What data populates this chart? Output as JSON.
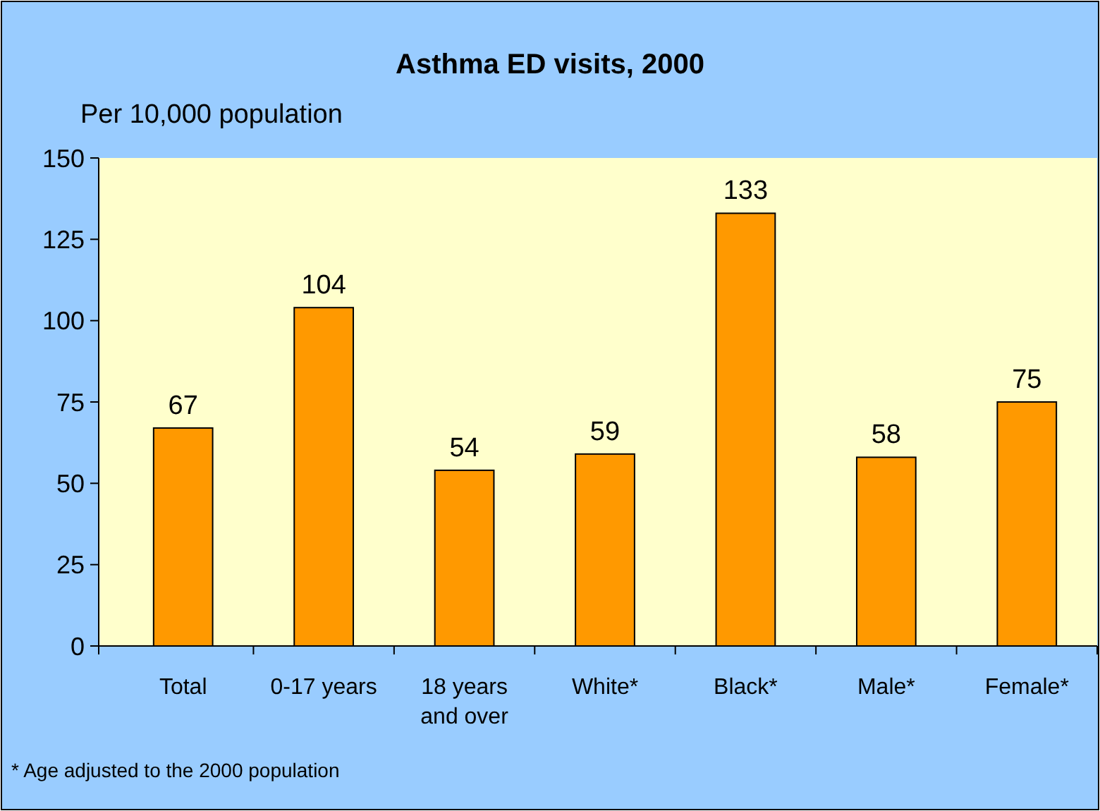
{
  "chart_data": {
    "type": "bar",
    "title": "Asthma ED visits, 2000",
    "ylabel": "Per 10,000 population",
    "categories": [
      "Total",
      "0-17 years",
      "18 years and over",
      "White*",
      "Black*",
      "Male*",
      "Female*"
    ],
    "values": [
      67,
      104,
      54,
      59,
      133,
      58,
      75
    ],
    "color": "#ff9900",
    "ylim": [
      0,
      150
    ],
    "yticks": [
      0,
      25,
      50,
      75,
      100,
      125,
      150
    ],
    "grid": false,
    "data_labels": true,
    "annotations": [
      "* Age adjusted to the 2000 population"
    ]
  }
}
